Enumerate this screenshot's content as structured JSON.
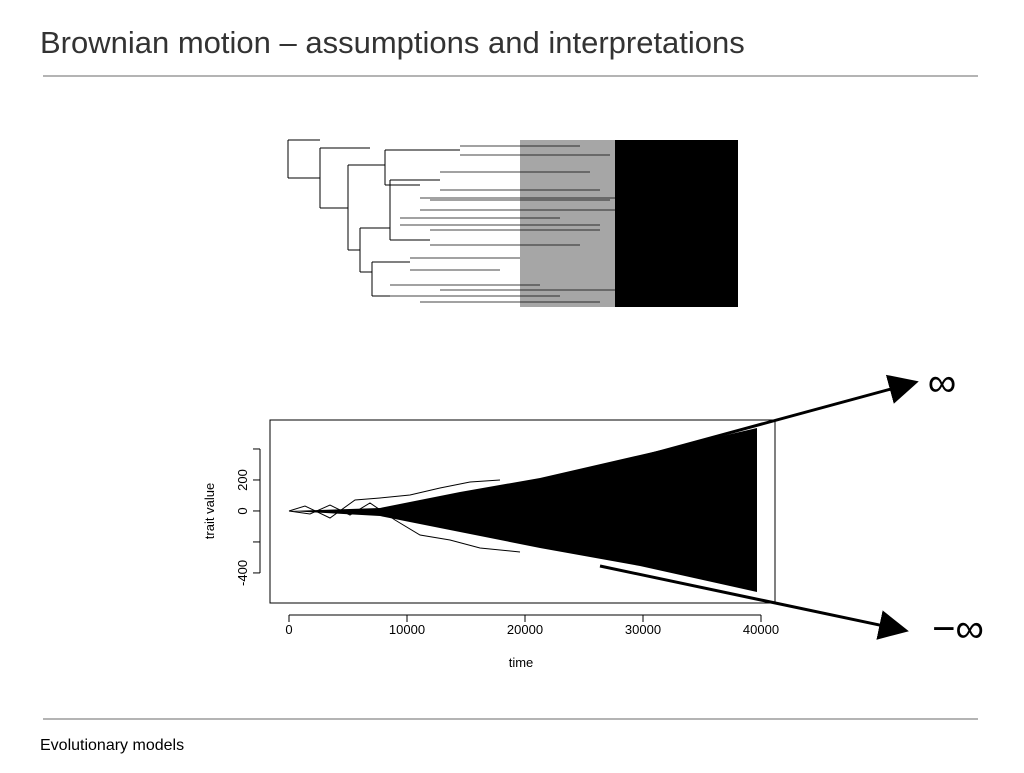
{
  "header": {
    "title": "Brownian motion – assumptions and interpretations"
  },
  "footer": {
    "text": "Evolutionary models"
  },
  "annotations": [
    "∞",
    "−∞"
  ],
  "chart_data": {
    "type": "line",
    "xlabel": "time",
    "ylabel": "trait value",
    "xlim": [
      -1610,
      41186
    ],
    "xticks": [
      0,
      10000,
      20000,
      30000,
      40000
    ],
    "ylim": [
      -594,
      587
    ],
    "yticks": [
      -400,
      {
        "value": -200,
        "label": null
      },
      0,
      200,
      {
        "value": 400,
        "label": null
      }
    ]
  }
}
